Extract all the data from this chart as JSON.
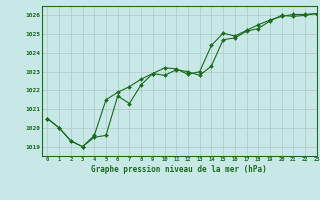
{
  "title": "Graphe pression niveau de la mer (hPa)",
  "background_color": "#c8e8e8",
  "grid_color": "#b0c8c8",
  "line_color": "#1a6b1a",
  "xlim": [
    -0.5,
    23
  ],
  "ylim": [
    1018.5,
    1026.5
  ],
  "yticks": [
    1019,
    1020,
    1021,
    1022,
    1023,
    1024,
    1025,
    1026
  ],
  "xticks": [
    0,
    1,
    2,
    3,
    4,
    5,
    6,
    7,
    8,
    9,
    10,
    11,
    12,
    13,
    14,
    15,
    16,
    17,
    18,
    19,
    20,
    21,
    22,
    23
  ],
  "series1_x": [
    0,
    1,
    2,
    3,
    4,
    5,
    6,
    7,
    8,
    9,
    10,
    11,
    12,
    13,
    14,
    15,
    16,
    17,
    18,
    19,
    20,
    21,
    22,
    23
  ],
  "series1_y": [
    1020.5,
    1020.0,
    1019.3,
    1019.0,
    1019.5,
    1019.6,
    1021.7,
    1021.3,
    1022.3,
    1022.9,
    1022.8,
    1023.1,
    1023.0,
    1022.8,
    1023.3,
    1024.7,
    1024.8,
    1025.15,
    1025.3,
    1025.7,
    1026.0,
    1025.95,
    1026.0,
    1026.1
  ],
  "series2_x": [
    0,
    1,
    2,
    3,
    4,
    5,
    6,
    7,
    8,
    9,
    10,
    11,
    12,
    13,
    14,
    15,
    16,
    17,
    18,
    19,
    20,
    21,
    22,
    23
  ],
  "series2_y": [
    1020.5,
    1020.0,
    1019.3,
    1019.0,
    1019.6,
    1021.5,
    1021.9,
    1022.2,
    1022.6,
    1022.9,
    1023.2,
    1023.15,
    1022.85,
    1023.0,
    1024.4,
    1025.05,
    1024.9,
    1025.2,
    1025.5,
    1025.75,
    1025.95,
    1026.05,
    1026.05,
    1026.1
  ],
  "figsize": [
    3.2,
    2.0
  ],
  "dpi": 100
}
